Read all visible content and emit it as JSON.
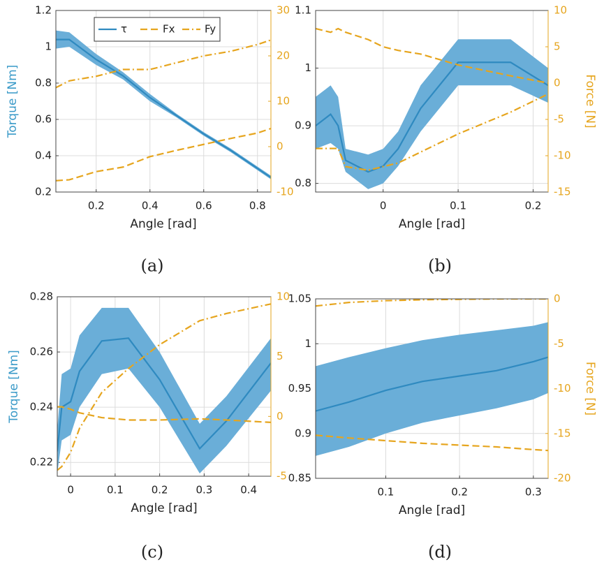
{
  "chart_data": [
    {
      "type": "line",
      "caption": "(a)",
      "xlabel": "Angle [rad]",
      "ylabel": "Torque [Nm]",
      "legend": "upper center",
      "grid": true,
      "x": [
        0.05,
        0.1,
        0.2,
        0.3,
        0.4,
        0.5,
        0.6,
        0.7,
        0.8,
        0.85
      ],
      "xlim": [
        0.05,
        0.85
      ],
      "xticks": [
        0.2,
        0.4,
        0.6,
        0.8
      ],
      "ylim": [
        0.2,
        1.2
      ],
      "yticks": [
        0.2,
        0.4,
        0.6,
        0.8,
        1,
        1.2
      ],
      "y2lim": [
        -10,
        30
      ],
      "y2ticks": [
        -10,
        0,
        10,
        20,
        30
      ],
      "series": [
        {
          "name": "τ",
          "color": "#2f8ac0",
          "band_color": "#6aaed8",
          "dash": "solid",
          "values": [
            1.04,
            1.04,
            0.93,
            0.84,
            0.72,
            0.62,
            0.52,
            0.43,
            0.33,
            0.28
          ],
          "lower": [
            0.99,
            1.0,
            0.9,
            0.82,
            0.7,
            0.61,
            0.51,
            0.42,
            0.32,
            0.27
          ],
          "upper": [
            1.09,
            1.08,
            0.96,
            0.86,
            0.74,
            0.63,
            0.53,
            0.44,
            0.34,
            0.29
          ]
        },
        {
          "name": "Fx",
          "color": "#e6a51e",
          "dash": "dashed",
          "axis": "y2",
          "values": [
            -7.5,
            -7.3,
            -5.5,
            -4.5,
            -2.2,
            -0.8,
            0.5,
            1.8,
            3,
            4
          ]
        },
        {
          "name": "Fy",
          "color": "#e6a51e",
          "dash": "dashdot",
          "axis": "y2",
          "values": [
            13,
            14.5,
            15.5,
            17,
            17,
            18.5,
            20,
            21,
            22.5,
            23.5
          ]
        }
      ]
    },
    {
      "type": "line",
      "caption": "(b)",
      "xlabel": "Angle [rad]",
      "y2label": "Force [N]",
      "grid": true,
      "x": [
        -0.09,
        -0.07,
        -0.06,
        -0.05,
        -0.02,
        0,
        0.02,
        0.05,
        0.1,
        0.17,
        0.22
      ],
      "xlim": [
        -0.09,
        0.22
      ],
      "xticks": [
        0,
        0.1,
        0.2
      ],
      "ylim": [
        0.785,
        1.1
      ],
      "yticks": [
        0.8,
        0.9,
        1,
        1.1
      ],
      "y2lim": [
        -15,
        10
      ],
      "y2ticks": [
        -15,
        -10,
        -5,
        0,
        5,
        10
      ],
      "series": [
        {
          "color": "#2f8ac0",
          "band_color": "#6aaed8",
          "dash": "solid",
          "values": [
            0.9,
            0.92,
            0.9,
            0.84,
            0.82,
            0.83,
            0.86,
            0.93,
            1.01,
            1.01,
            0.97
          ],
          "lower": [
            0.86,
            0.87,
            0.86,
            0.82,
            0.79,
            0.8,
            0.83,
            0.89,
            0.97,
            0.97,
            0.94
          ],
          "upper": [
            0.95,
            0.97,
            0.95,
            0.86,
            0.85,
            0.86,
            0.89,
            0.97,
            1.05,
            1.05,
            1.0
          ]
        },
        {
          "color": "#e6a51e",
          "dash": "dashed",
          "axis": "y2",
          "values": [
            7.5,
            7,
            7.5,
            7,
            6,
            5,
            4.5,
            4,
            2.5,
            1,
            0
          ]
        },
        {
          "color": "#e6a51e",
          "dash": "dashdot",
          "axis": "y2",
          "values": [
            -9,
            -9,
            -9,
            -11.5,
            -12,
            -11.5,
            -11,
            -9.5,
            -7,
            -4,
            -1.5
          ]
        }
      ]
    },
    {
      "type": "line",
      "caption": "(c)",
      "xlabel": "Angle [rad]",
      "ylabel": "Torque [Nm]",
      "grid": true,
      "x": [
        -0.03,
        -0.02,
        0,
        0.02,
        0.07,
        0.13,
        0.2,
        0.29,
        0.35,
        0.45
      ],
      "xlim": [
        -0.03,
        0.45
      ],
      "xticks": [
        0,
        0.1,
        0.2,
        0.3,
        0.4
      ],
      "ylim": [
        0.215,
        0.28
      ],
      "yticks": [
        0.22,
        0.24,
        0.26,
        0.28
      ],
      "y2lim": [
        -5,
        10
      ],
      "y2ticks": [
        -5,
        0,
        5,
        10
      ],
      "series": [
        {
          "color": "#2f8ac0",
          "band_color": "#6aaed8",
          "dash": "solid",
          "values": [
            0.224,
            0.24,
            0.242,
            0.253,
            0.264,
            0.265,
            0.25,
            0.225,
            0.235,
            0.256
          ],
          "lower": [
            0.216,
            0.228,
            0.23,
            0.24,
            0.252,
            0.254,
            0.24,
            0.216,
            0.226,
            0.246
          ],
          "upper": [
            0.232,
            0.252,
            0.254,
            0.266,
            0.276,
            0.276,
            0.26,
            0.234,
            0.244,
            0.265
          ]
        },
        {
          "color": "#e6a51e",
          "dash": "dashed",
          "axis": "y2",
          "values": [
            0.8,
            0.8,
            0.6,
            0.3,
            -0.1,
            -0.3,
            -0.3,
            -0.2,
            -0.3,
            -0.5
          ]
        },
        {
          "color": "#e6a51e",
          "dash": "dashdot",
          "axis": "y2",
          "values": [
            -4.5,
            -4.2,
            -3,
            -1,
            2,
            4,
            6,
            8,
            8.6,
            9.4
          ]
        }
      ]
    },
    {
      "type": "line",
      "caption": "(d)",
      "xlabel": "Angle [rad]",
      "y2label": "Force [N]",
      "grid": true,
      "x": [
        0.005,
        0.05,
        0.1,
        0.15,
        0.2,
        0.25,
        0.3,
        0.32
      ],
      "xlim": [
        0.005,
        0.32
      ],
      "xticks": [
        0.1,
        0.2,
        0.3
      ],
      "ylim": [
        0.85,
        1.05
      ],
      "yticks": [
        0.85,
        0.9,
        0.95,
        1,
        1.05
      ],
      "y2lim": [
        -20,
        0
      ],
      "y2ticks": [
        -20,
        -15,
        -10,
        -5,
        0
      ],
      "series": [
        {
          "color": "#2f8ac0",
          "band_color": "#6aaed8",
          "dash": "solid",
          "values": [
            0.925,
            0.935,
            0.948,
            0.958,
            0.964,
            0.97,
            0.98,
            0.985
          ],
          "lower": [
            0.875,
            0.885,
            0.9,
            0.912,
            0.92,
            0.928,
            0.938,
            0.945
          ],
          "upper": [
            0.975,
            0.985,
            0.995,
            1.004,
            1.01,
            1.015,
            1.02,
            1.024
          ]
        },
        {
          "color": "#e6a51e",
          "dash": "dashed",
          "axis": "y2",
          "values": [
            -15.2,
            -15.5,
            -15.8,
            -16.1,
            -16.3,
            -16.5,
            -16.8,
            -16.9
          ]
        },
        {
          "color": "#e6a51e",
          "dash": "dashdot",
          "axis": "y2",
          "values": [
            -0.8,
            -0.4,
            -0.2,
            -0.1,
            -0.05,
            0,
            0,
            0
          ]
        }
      ]
    }
  ]
}
